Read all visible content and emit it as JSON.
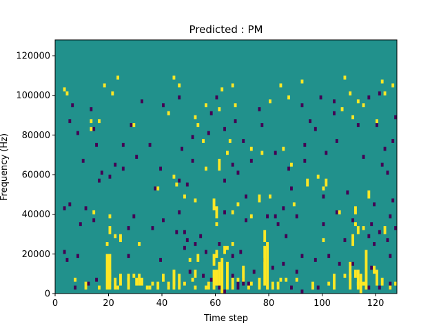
{
  "chart_data": {
    "type": "heatmap",
    "title": "Predicted : PM",
    "xlabel": "Time step",
    "ylabel": "Frequency (Hz)",
    "xlim": [
      0,
      128
    ],
    "ylim": [
      0,
      128000
    ],
    "x_ticks": [
      0,
      20,
      40,
      60,
      80,
      100,
      120
    ],
    "y_ticks": [
      0,
      20000,
      40000,
      60000,
      80000,
      100000,
      120000
    ],
    "x_tick_labels": [
      "0",
      "20",
      "40",
      "60",
      "80",
      "100",
      "120"
    ],
    "y_tick_labels": [
      "0",
      "20000",
      "40000",
      "60000",
      "80000",
      "100000",
      "120000"
    ],
    "grid": false,
    "colors": {
      "background": "#21918c",
      "high": "#fde725",
      "low": "#440154"
    },
    "cells_high": [
      [
        60,
        1,
        2,
        4
      ],
      [
        61,
        0,
        2,
        6
      ],
      [
        62,
        1,
        0,
        9
      ],
      [
        64,
        1,
        1,
        7
      ],
      [
        78,
        1,
        2,
        10
      ],
      [
        79,
        0,
        1,
        12
      ],
      [
        84,
        0,
        3,
        1
      ],
      [
        86,
        0,
        3,
        1
      ],
      [
        29,
        2,
        4,
        1
      ],
      [
        30,
        1,
        2,
        2
      ],
      [
        38,
        1,
        1,
        2
      ],
      [
        44,
        1,
        2,
        4
      ],
      [
        20,
        3,
        1,
        5
      ],
      [
        22,
        1,
        1,
        3
      ],
      [
        31,
        2,
        2,
        3
      ],
      [
        35,
        2,
        1,
        1
      ],
      [
        46,
        1,
        1,
        4
      ],
      [
        51,
        2,
        3,
        1
      ],
      [
        19,
        1,
        1,
        9
      ],
      [
        20,
        3,
        3,
        7
      ],
      [
        27,
        0,
        1,
        4
      ],
      [
        36,
        1,
        2,
        1
      ],
      [
        68,
        1,
        3,
        1
      ],
      [
        76,
        0,
        1,
        3
      ],
      [
        44,
        4,
        1,
        5
      ],
      [
        113,
        1,
        1,
        5
      ],
      [
        112,
        2,
        4,
        2
      ],
      [
        114,
        1,
        0,
        5
      ],
      [
        122,
        0,
        2,
        2
      ],
      [
        116,
        1,
        1,
        10
      ],
      [
        110,
        0,
        1,
        7
      ],
      [
        59,
        2,
        1,
        5
      ],
      [
        66,
        2,
        1,
        3
      ],
      [
        73,
        2,
        2,
        1
      ],
      [
        81,
        1,
        1,
        2
      ],
      [
        104,
        1,
        1,
        4
      ],
      [
        11,
        1,
        1,
        2
      ],
      [
        16,
        2,
        1,
        1
      ],
      [
        23,
        1,
        1,
        1
      ],
      [
        24,
        1,
        2,
        3
      ],
      [
        42,
        1,
        1,
        1
      ],
      [
        57,
        2,
        1,
        2
      ],
      [
        27,
        2,
        3,
        1
      ],
      [
        32,
        3,
        2,
        2
      ],
      [
        48,
        2,
        2,
        1
      ],
      [
        52,
        2,
        1,
        1
      ],
      [
        70,
        2,
        3,
        4
      ],
      [
        113,
        4,
        2,
        1
      ],
      [
        83,
        1,
        1,
        2
      ],
      [
        90,
        1,
        3,
        1
      ],
      [
        96,
        1,
        1,
        2
      ],
      [
        110,
        1,
        4,
        1
      ],
      [
        119,
        0,
        5,
        2
      ],
      [
        120,
        0,
        2,
        4
      ],
      [
        125,
        0,
        1,
        1
      ],
      [
        127,
        0,
        2,
        1
      ],
      [
        108,
        0,
        4,
        1
      ],
      [
        115,
        0,
        2,
        1
      ],
      [
        42,
        0,
        2,
        1
      ],
      [
        34,
        0,
        1,
        1
      ],
      [
        56,
        0,
        1,
        1
      ],
      [
        72,
        0,
        1,
        1
      ],
      [
        102,
        0,
        2,
        1
      ],
      [
        7,
        0,
        3,
        1
      ],
      [
        40,
        0,
        3,
        2
      ],
      [
        52,
        0,
        4,
        2
      ],
      [
        59,
        0,
        7,
        3
      ],
      [
        53,
        0,
        8,
        2
      ],
      [
        50,
        0,
        8,
        1
      ],
      [
        60,
        0,
        9,
        2
      ],
      [
        63,
        0,
        10,
        2
      ],
      [
        64,
        0,
        11,
        1
      ],
      [
        66,
        0,
        12,
        1
      ],
      [
        78,
        0,
        13,
        2
      ],
      [
        78,
        0,
        15,
        1
      ],
      [
        31,
        0,
        12,
        1
      ],
      [
        19,
        0,
        12,
        1
      ],
      [
        22,
        0,
        14,
        1
      ],
      [
        24,
        0,
        13,
        2
      ],
      [
        20,
        0,
        15,
        2
      ],
      [
        20,
        0,
        19,
        1
      ],
      [
        14,
        0,
        20,
        1
      ],
      [
        73,
        0,
        19,
        1
      ],
      [
        66,
        0,
        20,
        1
      ],
      [
        68,
        0,
        22,
        1
      ],
      [
        52,
        0,
        23,
        1
      ],
      [
        48,
        0,
        24,
        1
      ],
      [
        89,
        0,
        22,
        1
      ],
      [
        100,
        0,
        13,
        1
      ],
      [
        111,
        0,
        12,
        3
      ],
      [
        112,
        0,
        17,
        1
      ],
      [
        113,
        0,
        15,
        2
      ],
      [
        115,
        0,
        16,
        1
      ],
      [
        123,
        0,
        15,
        2
      ],
      [
        60,
        0,
        17,
        1
      ],
      [
        60,
        0,
        19,
        3
      ],
      [
        59,
        0,
        21,
        3
      ],
      [
        76,
        0,
        23,
        2
      ],
      [
        80,
        0,
        24,
        1
      ],
      [
        38,
        0,
        26,
        1
      ],
      [
        45,
        0,
        27,
        1
      ],
      [
        44,
        0,
        29,
        1
      ],
      [
        56,
        0,
        31,
        1
      ],
      [
        61,
        0,
        31,
        3
      ],
      [
        88,
        0,
        32,
        1
      ],
      [
        98,
        0,
        29,
        1
      ],
      [
        94,
        0,
        27,
        2
      ],
      [
        100,
        0,
        26,
        1
      ],
      [
        101,
        0,
        27,
        2
      ],
      [
        106,
        0,
        20,
        1
      ],
      [
        112,
        0,
        20,
        2
      ],
      [
        117,
        0,
        24,
        2
      ],
      [
        64,
        0,
        35,
        1
      ],
      [
        65,
        0,
        38,
        1
      ],
      [
        73,
        0,
        36,
        1
      ],
      [
        77,
        0,
        35,
        1
      ],
      [
        85,
        0,
        36,
        1
      ],
      [
        55,
        0,
        38,
        1
      ],
      [
        53,
        0,
        42,
        1
      ],
      [
        52,
        0,
        44,
        1
      ],
      [
        42,
        0,
        45,
        1
      ],
      [
        29,
        0,
        42,
        1
      ],
      [
        13,
        0,
        41,
        1
      ],
      [
        13,
        0,
        43,
        1
      ],
      [
        16,
        0,
        43,
        1
      ],
      [
        21,
        0,
        50,
        1
      ],
      [
        18,
        0,
        52,
        1
      ],
      [
        23,
        0,
        54,
        1
      ],
      [
        4,
        0,
        50,
        1
      ],
      [
        3,
        0,
        51,
        1
      ],
      [
        46,
        0,
        52,
        1
      ],
      [
        44,
        0,
        54,
        1
      ],
      [
        56,
        0,
        47,
        1
      ],
      [
        61,
        0,
        46,
        1
      ],
      [
        62,
        0,
        51,
        1
      ],
      [
        66,
        0,
        52,
        1
      ],
      [
        67,
        0,
        47,
        1
      ],
      [
        80,
        0,
        48,
        1
      ],
      [
        84,
        0,
        52,
        1
      ],
      [
        87,
        0,
        49,
        1
      ],
      [
        115,
        0,
        47,
        1
      ],
      [
        120,
        0,
        43,
        1
      ],
      [
        111,
        0,
        44,
        1
      ],
      [
        123,
        0,
        50,
        1
      ],
      [
        122,
        0,
        53,
        1
      ],
      [
        126,
        0,
        52,
        1
      ],
      [
        113,
        0,
        48,
        1
      ],
      [
        107,
        0,
        46,
        1
      ],
      [
        108,
        0,
        54,
        1
      ],
      [
        92,
        0,
        53,
        1
      ],
      [
        110,
        0,
        50,
        1
      ]
    ],
    "cells_low": [
      [
        83,
        0,
        1,
        1
      ],
      [
        88,
        0,
        1,
        1
      ],
      [
        61,
        0,
        1,
        1
      ],
      [
        63,
        0,
        0,
        1
      ],
      [
        68,
        0,
        1,
        2
      ],
      [
        70,
        0,
        2,
        2
      ],
      [
        72,
        0,
        1,
        2
      ],
      [
        92,
        0,
        0,
        1
      ],
      [
        98,
        0,
        1,
        1
      ],
      [
        117,
        0,
        1,
        1
      ],
      [
        121,
        0,
        1,
        1
      ],
      [
        125,
        0,
        1,
        2
      ],
      [
        7,
        0,
        1,
        1
      ],
      [
        12,
        0,
        2,
        1
      ],
      [
        15,
        0,
        3,
        1
      ],
      [
        58,
        0,
        3,
        1
      ],
      [
        66,
        0,
        4,
        1
      ],
      [
        48,
        0,
        2,
        1
      ],
      [
        50,
        0,
        5,
        1
      ],
      [
        55,
        0,
        4,
        1
      ],
      [
        74,
        0,
        5,
        1
      ],
      [
        81,
        0,
        6,
        1
      ],
      [
        85,
        0,
        7,
        1
      ],
      [
        90,
        0,
        5,
        1
      ],
      [
        4,
        0,
        8,
        1
      ],
      [
        3,
        0,
        10,
        1
      ],
      [
        8,
        0,
        9,
        1
      ],
      [
        27,
        0,
        9,
        1
      ],
      [
        39,
        0,
        8,
        1
      ],
      [
        56,
        0,
        10,
        1
      ],
      [
        61,
        0,
        12,
        1
      ],
      [
        66,
        0,
        9,
        1
      ],
      [
        69,
        0,
        10,
        1
      ],
      [
        78,
        0,
        8,
        1
      ],
      [
        92,
        0,
        9,
        1
      ],
      [
        97,
        0,
        8,
        1
      ],
      [
        102,
        0,
        9,
        1
      ],
      [
        106,
        0,
        7,
        1
      ],
      [
        111,
        0,
        7,
        1
      ],
      [
        118,
        0,
        6,
        1
      ],
      [
        125,
        0,
        9,
        1
      ],
      [
        48,
        0,
        11,
        1
      ],
      [
        49,
        0,
        13,
        1
      ],
      [
        48,
        0,
        15,
        1
      ],
      [
        52,
        0,
        12,
        1
      ],
      [
        54,
        0,
        14,
        1
      ],
      [
        86,
        0,
        14,
        1
      ],
      [
        108,
        0,
        13,
        1
      ],
      [
        117,
        0,
        14,
        1
      ],
      [
        119,
        0,
        12,
        1
      ],
      [
        121,
        0,
        15,
        1
      ],
      [
        124,
        0,
        13,
        1
      ],
      [
        127,
        0,
        16,
        1
      ],
      [
        27,
        0,
        16,
        1
      ],
      [
        36,
        0,
        16,
        1
      ],
      [
        45,
        0,
        15,
        1
      ],
      [
        40,
        0,
        18,
        1
      ],
      [
        46,
        0,
        20,
        1
      ],
      [
        29,
        0,
        19,
        1
      ],
      [
        14,
        0,
        18,
        1
      ],
      [
        9,
        0,
        17,
        1
      ],
      [
        3,
        0,
        21,
        1
      ],
      [
        5,
        0,
        22,
        1
      ],
      [
        11,
        0,
        21,
        1
      ],
      [
        63,
        0,
        20,
        1
      ],
      [
        71,
        0,
        18,
        1
      ],
      [
        79,
        0,
        19,
        1
      ],
      [
        85,
        0,
        21,
        1
      ],
      [
        82,
        0,
        19,
        1
      ],
      [
        83,
        0,
        17,
        1
      ],
      [
        90,
        0,
        19,
        1
      ],
      [
        100,
        0,
        17,
        1
      ],
      [
        105,
        0,
        20,
        1
      ],
      [
        111,
        0,
        18,
        1
      ],
      [
        118,
        0,
        17,
        1
      ],
      [
        125,
        0,
        19,
        1
      ],
      [
        16,
        0,
        28,
        1
      ],
      [
        20,
        0,
        29,
        1
      ],
      [
        25,
        0,
        31,
        1
      ],
      [
        37,
        0,
        26,
        1
      ],
      [
        46,
        0,
        28,
        1
      ],
      [
        49,
        0,
        27,
        1
      ],
      [
        63,
        0,
        28,
        1
      ],
      [
        71,
        0,
        24,
        1
      ],
      [
        88,
        0,
        26,
        1
      ],
      [
        100,
        0,
        24,
        1
      ],
      [
        109,
        0,
        25,
        1
      ],
      [
        119,
        0,
        22,
        1
      ],
      [
        126,
        0,
        23,
        1
      ],
      [
        10,
        0,
        33,
        1
      ],
      [
        17,
        0,
        30,
        1
      ],
      [
        22,
        0,
        32,
        1
      ],
      [
        30,
        0,
        34,
        1
      ],
      [
        39,
        0,
        31,
        1
      ],
      [
        51,
        0,
        33,
        1
      ],
      [
        66,
        0,
        32,
        1
      ],
      [
        68,
        0,
        30,
        1
      ],
      [
        73,
        0,
        33,
        1
      ],
      [
        87,
        0,
        31,
        1
      ],
      [
        93,
        0,
        33,
        1
      ],
      [
        101,
        0,
        35,
        1
      ],
      [
        115,
        0,
        34,
        1
      ],
      [
        122,
        0,
        32,
        1
      ],
      [
        124,
        0,
        30,
        1
      ],
      [
        15,
        0,
        37,
        1
      ],
      [
        25,
        0,
        37,
        1
      ],
      [
        35,
        0,
        37,
        1
      ],
      [
        47,
        0,
        36,
        1
      ],
      [
        51,
        0,
        39,
        1
      ],
      [
        57,
        0,
        40,
        1
      ],
      [
        70,
        0,
        38,
        1
      ],
      [
        82,
        0,
        35,
        1
      ],
      [
        93,
        0,
        37,
        1
      ],
      [
        105,
        0,
        38,
        1
      ],
      [
        123,
        0,
        36,
        1
      ],
      [
        126,
        0,
        38,
        1
      ],
      [
        5,
        0,
        43,
        1
      ],
      [
        8,
        0,
        40,
        1
      ],
      [
        14,
        0,
        41,
        1
      ],
      [
        28,
        0,
        42,
        1
      ],
      [
        63,
        0,
        41,
        1
      ],
      [
        67,
        0,
        43,
        1
      ],
      [
        77,
        0,
        42,
        1
      ],
      [
        95,
        0,
        43,
        1
      ],
      [
        97,
        0,
        41,
        1
      ],
      [
        104,
        0,
        45,
        1
      ],
      [
        113,
        0,
        42,
        1
      ],
      [
        120,
        0,
        42,
        1
      ],
      [
        127,
        0,
        44,
        1
      ],
      [
        6,
        0,
        47,
        1
      ],
      [
        13,
        0,
        46,
        1
      ],
      [
        32,
        0,
        48,
        1
      ],
      [
        40,
        0,
        47,
        1
      ],
      [
        46,
        0,
        49,
        1
      ],
      [
        58,
        0,
        45,
        1
      ],
      [
        60,
        0,
        49,
        1
      ],
      [
        76,
        0,
        46,
        1
      ],
      [
        92,
        0,
        47,
        1
      ],
      [
        99,
        0,
        49,
        1
      ],
      [
        104,
        0,
        48,
        1
      ],
      [
        117,
        0,
        49,
        1
      ],
      [
        121,
        0,
        50,
        1
      ]
    ]
  }
}
